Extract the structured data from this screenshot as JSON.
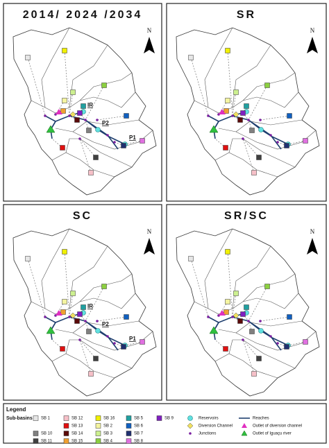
{
  "panels": [
    {
      "title": "2014/ 2024 /2034",
      "north": "N",
      "labels": [
        "IR",
        "P2",
        "P1"
      ]
    },
    {
      "title": "SR",
      "north": "N"
    },
    {
      "title": "SC",
      "north": "N",
      "labels": [
        "IR",
        "P2",
        "P1"
      ]
    },
    {
      "title": "SR/SC",
      "north": "N"
    }
  ],
  "legend": {
    "title": "Legend",
    "subbasins_title": "Sub-basins",
    "subbasins": [
      {
        "label": "SB 1",
        "color": "#e6e6e6"
      },
      {
        "label": "SB 10",
        "color": "#808080"
      },
      {
        "label": "SB 11",
        "color": "#404040"
      },
      {
        "label": "SB 12",
        "color": "#f6c0c8"
      },
      {
        "label": "SB 13",
        "color": "#e01010"
      },
      {
        "label": "SB 14",
        "color": "#5a0a0a"
      },
      {
        "label": "SB 15",
        "color": "#f0a030"
      },
      {
        "label": "SB 16",
        "color": "#f0f000"
      },
      {
        "label": "SB 2",
        "color": "#f4f4a0"
      },
      {
        "label": "SB 3",
        "color": "#cdf090"
      },
      {
        "label": "SB 4",
        "color": "#8cd040"
      },
      {
        "label": "SB 5",
        "color": "#20a0a0"
      },
      {
        "label": "SB 6",
        "color": "#1060c0"
      },
      {
        "label": "SB 7",
        "color": "#203070"
      },
      {
        "label": "SB 8",
        "color": "#e070e0"
      },
      {
        "label": "SB 9",
        "color": "#8020c0"
      }
    ],
    "symbols": [
      {
        "label": "Reservoirs"
      },
      {
        "label": "Diversion Channel"
      },
      {
        "label": "Junctions"
      },
      {
        "label": "Reaches"
      },
      {
        "label": "Outlet of diversion channel"
      },
      {
        "label": "Outlet of Iguaçu river"
      }
    ]
  }
}
